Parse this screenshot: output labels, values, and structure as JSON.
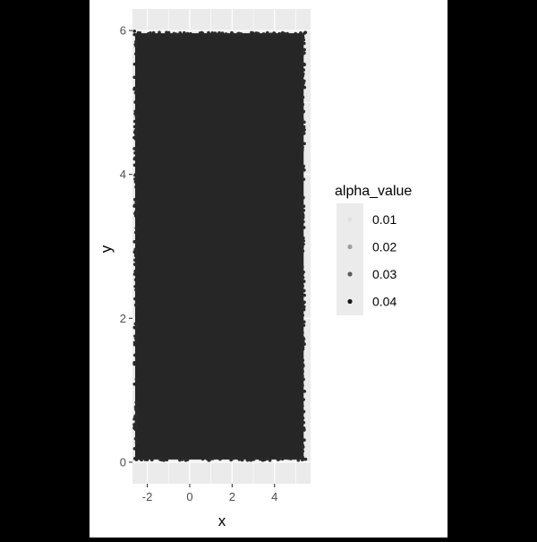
{
  "chart_data": {
    "type": "scatter",
    "title": "",
    "xlabel": "x",
    "ylabel": "y",
    "xlim": [
      -2.7,
      5.7
    ],
    "ylim": [
      -0.3,
      6.3
    ],
    "x_ticks": [
      -2,
      0,
      2,
      4
    ],
    "y_ticks": [
      0,
      2,
      4,
      6
    ],
    "x_tick_labels": [
      "-2",
      "0",
      "2",
      "4"
    ],
    "y_tick_labels": [
      "0",
      "2",
      "4",
      "6"
    ],
    "grid": true,
    "points_x_range": [
      -2.7,
      5.5
    ],
    "points_y_range": [
      0,
      6
    ],
    "point_color": "#000000",
    "panel_background": "#ebebeb",
    "legend": {
      "title": "alpha_value",
      "position": "right",
      "entries": [
        {
          "label": "0.01",
          "alpha": 0.01
        },
        {
          "label": "0.02",
          "alpha": 0.02
        },
        {
          "label": "0.03",
          "alpha": 0.03
        },
        {
          "label": "0.04",
          "alpha": 0.04
        }
      ]
    }
  }
}
